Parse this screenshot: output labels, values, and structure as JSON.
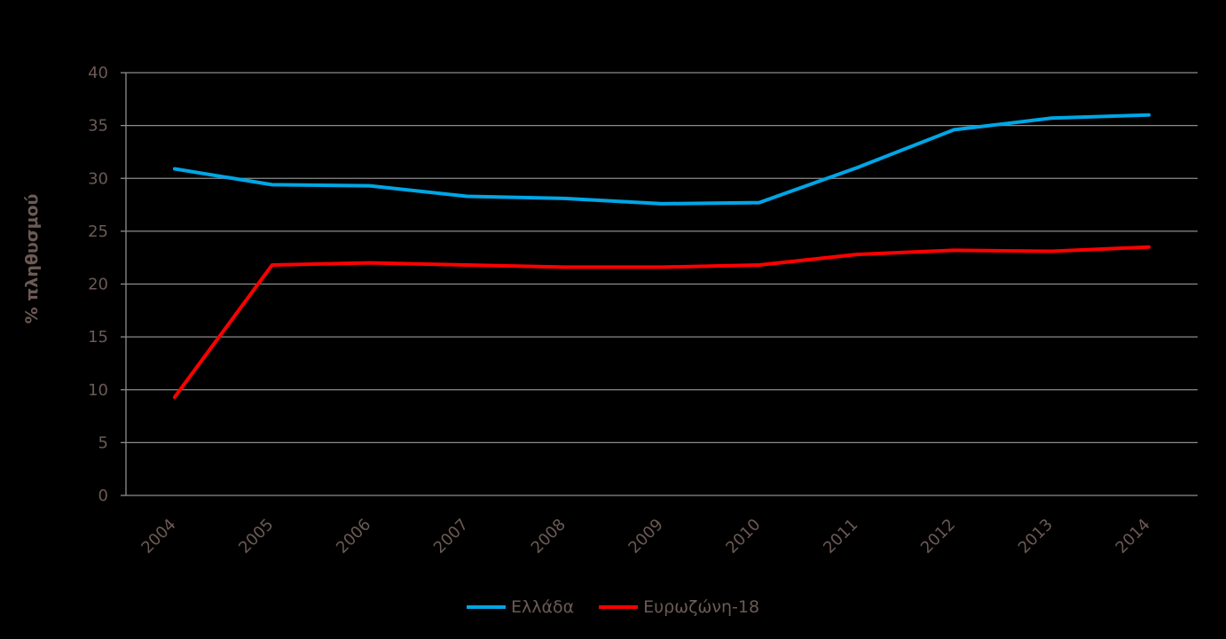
{
  "chart_data": {
    "type": "line",
    "title": "",
    "xlabel": "",
    "ylabel": "% πληθυσμού",
    "ylim": [
      0,
      40
    ],
    "yticks": [
      0,
      5,
      10,
      15,
      20,
      25,
      30,
      35,
      40
    ],
    "grid": true,
    "legend_position": "bottom",
    "categories": [
      "2004",
      "2005",
      "2006",
      "2007",
      "2008",
      "2009",
      "2010",
      "2011",
      "2012",
      "2013",
      "2014"
    ],
    "series": [
      {
        "name": "Ελλάδα",
        "color": "#00a6e6",
        "values": [
          30.9,
          29.4,
          29.3,
          28.3,
          28.1,
          27.6,
          27.7,
          31.0,
          34.6,
          35.7,
          36.0
        ]
      },
      {
        "name": "Ευρωζώνη-18",
        "color": "#ff0000",
        "values": [
          9.3,
          21.8,
          22.0,
          21.8,
          21.6,
          21.6,
          21.8,
          22.8,
          23.2,
          23.1,
          23.5
        ]
      }
    ]
  }
}
